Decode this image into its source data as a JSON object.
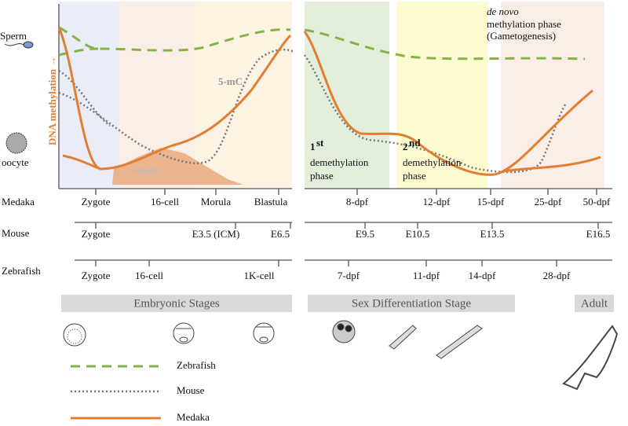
{
  "labels": {
    "sperm": "Sperm",
    "oocyte": "oocyte",
    "y_axis": "DNA methylation →",
    "five_mc": "5-mC",
    "five_hmc": "5-hmC",
    "first_phase": {
      "sup": "st",
      "num": "1",
      "line1": "demethylation",
      "line2": "phase"
    },
    "second_phase": {
      "sup": "nd",
      "num": "2",
      "line1": "demethylation",
      "line2": "phase"
    },
    "de_novo": {
      "line1": "de novo",
      "line2": "methylation phase",
      "line3": "(Gametogenesis)"
    }
  },
  "rows": [
    {
      "name": "Medaka",
      "stages": [
        "Zygote",
        "16-cell",
        "Morula",
        "Blastula",
        "8-dpf",
        "12-dpf",
        "15-dpf",
        "25-dpf",
        "50-dpf"
      ]
    },
    {
      "name": "Mouse",
      "stages": [
        "Zygote",
        "E3.5 (ICM)",
        "E6.5",
        "E9.5",
        "E10.5",
        "E13.5",
        "E16.5"
      ]
    },
    {
      "name": "Zebrafish",
      "stages": [
        "Zygote",
        "16-cell",
        "1K-cell",
        "7-dpf",
        "11-dpf",
        "14-dpf",
        "28-dpf"
      ]
    }
  ],
  "stage_bars": [
    "Embryonic Stages",
    "Sex Differentiation Stage",
    "Adult"
  ],
  "legend": [
    "Zebrafish",
    "Mouse",
    "Medaka"
  ]
}
